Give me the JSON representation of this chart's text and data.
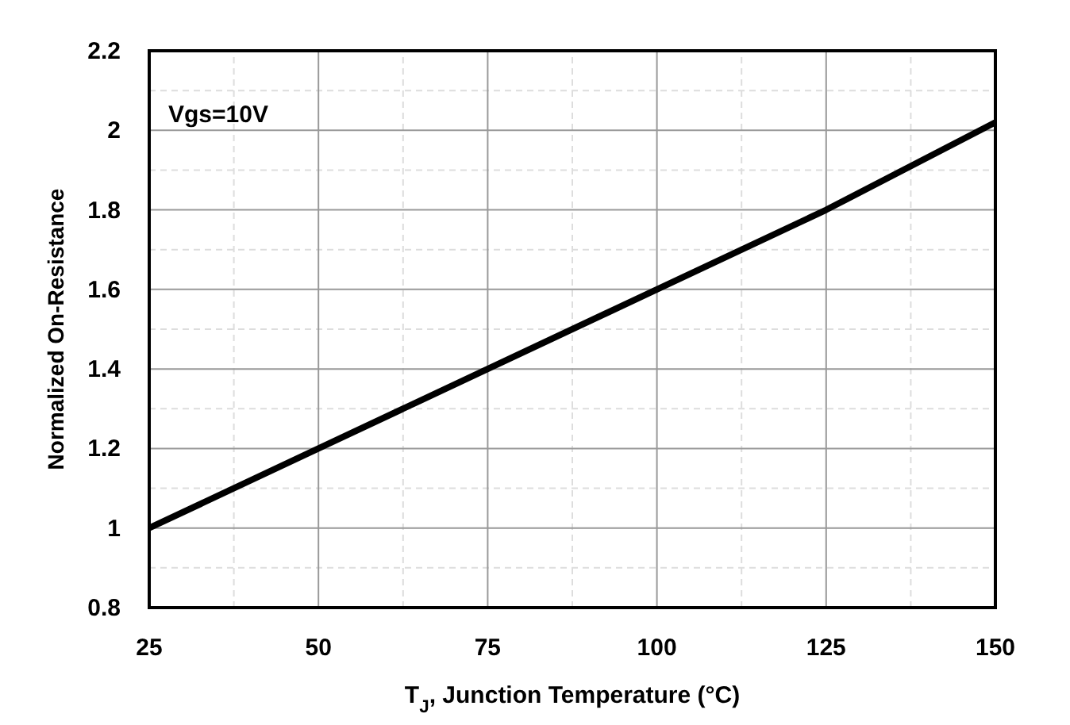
{
  "chart_data": {
    "type": "line",
    "xlabel": "T$_{J}$, Junction Temperature (°C)",
    "ylabel": "Normalized On-Resistance",
    "annotations": [
      "Vgs=10V"
    ],
    "x": [
      25,
      50,
      75,
      100,
      125,
      150
    ],
    "series": [
      {
        "color": "#000000",
        "values": [
          1.0,
          1.2,
          1.4,
          1.6,
          1.8,
          2.02
        ]
      }
    ],
    "xlim": [
      25,
      150
    ],
    "xticks": [
      25,
      50,
      75,
      100,
      125,
      150
    ],
    "ylim": [
      0.8,
      2.2
    ],
    "yticks": [
      0.8,
      1,
      1.2,
      1.4,
      1.6,
      1.8,
      2,
      2.2
    ],
    "grid": true,
    "line_style": "solid"
  }
}
